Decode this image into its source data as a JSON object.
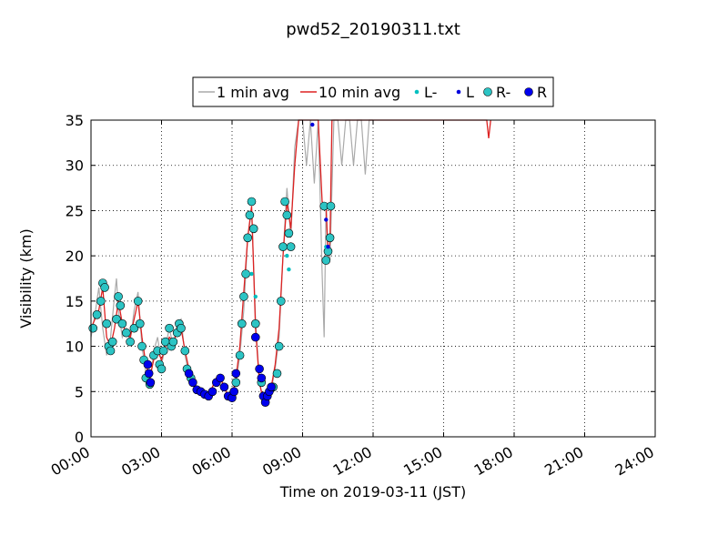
{
  "chart_data": {
    "type": "line",
    "title": "pwd52_20190311.txt",
    "xlabel": "Time on 2019-03-11 (JST)",
    "ylabel": "Visibility (km)",
    "xlim": [
      "00:00",
      "24:00"
    ],
    "ylim": [
      0,
      35
    ],
    "x_ticks": [
      "00:00",
      "03:00",
      "06:00",
      "09:00",
      "12:00",
      "15:00",
      "18:00",
      "21:00",
      "24:00"
    ],
    "y_ticks": [
      0,
      5,
      10,
      15,
      20,
      25,
      30,
      35
    ],
    "grid": true,
    "legend_position": "top-center",
    "legend": [
      {
        "label": "1 min avg",
        "marker": "line",
        "color": "#aaaaaa"
      },
      {
        "label": "10 min avg",
        "marker": "line",
        "color": "#dd2222"
      },
      {
        "label": "L-",
        "marker": "small-dot",
        "color": "#00bfbf"
      },
      {
        "label": "L",
        "marker": "small-dot",
        "color": "#0000dd"
      },
      {
        "label": "R-",
        "marker": "circle",
        "color": "#2cc4c4"
      },
      {
        "label": "R",
        "marker": "circle",
        "color": "#0000ee"
      }
    ],
    "series": [
      {
        "name": "1 min avg",
        "color": "#aaaaaa",
        "points": [
          [
            "00:00",
            11.0
          ],
          [
            "00:10",
            13.5
          ],
          [
            "00:20",
            16.5
          ],
          [
            "00:30",
            12.0
          ],
          [
            "00:40",
            9.0
          ],
          [
            "00:50",
            11.0
          ],
          [
            "01:00",
            15.5
          ],
          [
            "01:05",
            17.5
          ],
          [
            "01:10",
            14.0
          ],
          [
            "01:20",
            11.0
          ],
          [
            "01:30",
            12.0
          ],
          [
            "01:40",
            10.5
          ],
          [
            "01:50",
            14.0
          ],
          [
            "02:00",
            16.0
          ],
          [
            "02:10",
            10.0
          ],
          [
            "02:20",
            7.0
          ],
          [
            "02:30",
            5.5
          ],
          [
            "02:40",
            9.5
          ],
          [
            "02:50",
            11.0
          ],
          [
            "03:00",
            8.0
          ],
          [
            "03:10",
            10.0
          ],
          [
            "03:20",
            12.0
          ],
          [
            "03:30",
            10.0
          ],
          [
            "03:40",
            12.5
          ],
          [
            "03:50",
            13.0
          ],
          [
            "04:00",
            9.0
          ],
          [
            "04:10",
            7.0
          ],
          [
            "04:20",
            6.0
          ],
          [
            "04:30",
            5.0
          ],
          [
            "04:40",
            4.8
          ],
          [
            "04:50",
            5.0
          ],
          [
            "05:00",
            4.6
          ],
          [
            "05:10",
            5.5
          ],
          [
            "05:20",
            6.5
          ],
          [
            "05:30",
            6.8
          ],
          [
            "05:40",
            5.5
          ],
          [
            "05:50",
            4.5
          ],
          [
            "06:00",
            4.4
          ],
          [
            "06:10",
            6.0
          ],
          [
            "06:20",
            9.0
          ],
          [
            "06:30",
            14.0
          ],
          [
            "06:40",
            22.0
          ],
          [
            "06:50",
            25.0
          ],
          [
            "07:00",
            13.0
          ],
          [
            "07:10",
            6.0
          ],
          [
            "07:20",
            3.8
          ],
          [
            "07:30",
            4.5
          ],
          [
            "07:40",
            5.2
          ],
          [
            "07:50",
            7.5
          ],
          [
            "08:00",
            11.0
          ],
          [
            "08:10",
            20.0
          ],
          [
            "08:20",
            27.5
          ],
          [
            "08:30",
            22.0
          ],
          [
            "08:40",
            32.0
          ],
          [
            "08:50",
            35.0
          ],
          [
            "09:00",
            35.0
          ],
          [
            "09:10",
            30.0
          ],
          [
            "09:20",
            35.0
          ],
          [
            "09:30",
            28.0
          ],
          [
            "09:40",
            35.0
          ],
          [
            "09:50",
            18.0
          ],
          [
            "09:55",
            11.0
          ],
          [
            "10:00",
            25.5
          ],
          [
            "10:05",
            21.0
          ],
          [
            "10:10",
            19.5
          ],
          [
            "10:20",
            35.0
          ],
          [
            "10:30",
            35.0
          ],
          [
            "10:40",
            30.0
          ],
          [
            "10:50",
            35.0
          ],
          [
            "11:00",
            35.0
          ],
          [
            "11:10",
            30.0
          ],
          [
            "11:20",
            35.0
          ],
          [
            "11:30",
            35.0
          ],
          [
            "11:40",
            29.0
          ],
          [
            "11:50",
            35.0
          ],
          [
            "12:00",
            35.0
          ]
        ]
      },
      {
        "name": "10 min avg",
        "color": "#dd2222",
        "points": [
          [
            "00:00",
            12.0
          ],
          [
            "00:20",
            14.0
          ],
          [
            "00:30",
            16.5
          ],
          [
            "00:40",
            11.0
          ],
          [
            "00:50",
            10.0
          ],
          [
            "01:00",
            12.0
          ],
          [
            "01:10",
            15.0
          ],
          [
            "01:20",
            12.5
          ],
          [
            "01:30",
            11.5
          ],
          [
            "01:40",
            11.0
          ],
          [
            "01:50",
            13.0
          ],
          [
            "02:00",
            15.0
          ],
          [
            "02:10",
            11.0
          ],
          [
            "02:20",
            8.0
          ],
          [
            "02:30",
            6.5
          ],
          [
            "02:40",
            8.5
          ],
          [
            "02:50",
            9.5
          ],
          [
            "03:00",
            8.5
          ],
          [
            "03:10",
            10.0
          ],
          [
            "03:20",
            11.0
          ],
          [
            "03:30",
            10.5
          ],
          [
            "03:40",
            11.5
          ],
          [
            "03:50",
            12.0
          ],
          [
            "04:00",
            9.5
          ],
          [
            "04:10",
            7.5
          ],
          [
            "04:20",
            6.0
          ],
          [
            "04:30",
            5.2
          ],
          [
            "04:40",
            5.0
          ],
          [
            "04:50",
            5.0
          ],
          [
            "05:00",
            4.8
          ],
          [
            "05:10",
            5.5
          ],
          [
            "05:20",
            6.5
          ],
          [
            "05:30",
            6.5
          ],
          [
            "05:40",
            5.5
          ],
          [
            "05:50",
            4.5
          ],
          [
            "06:00",
            4.5
          ],
          [
            "06:10",
            6.5
          ],
          [
            "06:20",
            10.0
          ],
          [
            "06:30",
            16.0
          ],
          [
            "06:40",
            22.0
          ],
          [
            "06:50",
            25.5
          ],
          [
            "07:00",
            12.0
          ],
          [
            "07:10",
            6.0
          ],
          [
            "07:20",
            4.0
          ],
          [
            "07:30",
            4.5
          ],
          [
            "07:40",
            5.5
          ],
          [
            "07:50",
            8.0
          ],
          [
            "08:00",
            12.0
          ],
          [
            "08:10",
            20.0
          ],
          [
            "08:20",
            26.0
          ],
          [
            "08:30",
            23.0
          ],
          [
            "08:40",
            30.0
          ],
          [
            "08:50",
            35.0
          ],
          [
            "09:20",
            35.0
          ],
          [
            "09:40",
            35.0
          ],
          [
            "09:50",
            26.0
          ],
          [
            "10:00",
            25.5
          ],
          [
            "10:05",
            20.0
          ],
          [
            "10:10",
            21.5
          ],
          [
            "10:15",
            35.0
          ],
          [
            "16:50",
            35.0
          ],
          [
            "16:55",
            33.0
          ],
          [
            "17:00",
            35.0
          ]
        ]
      },
      {
        "name": "R-",
        "color": "#2cc4c4",
        "points": [
          [
            "00:05",
            12.0
          ],
          [
            "00:15",
            13.5
          ],
          [
            "00:25",
            15.0
          ],
          [
            "00:30",
            17.0
          ],
          [
            "00:35",
            16.5
          ],
          [
            "00:40",
            12.5
          ],
          [
            "00:45",
            10.0
          ],
          [
            "00:50",
            9.5
          ],
          [
            "00:55",
            10.5
          ],
          [
            "01:05",
            13.0
          ],
          [
            "01:10",
            15.5
          ],
          [
            "01:15",
            14.5
          ],
          [
            "01:20",
            12.5
          ],
          [
            "01:30",
            11.5
          ],
          [
            "01:40",
            10.5
          ],
          [
            "01:50",
            12.0
          ],
          [
            "02:00",
            15.0
          ],
          [
            "02:05",
            12.5
          ],
          [
            "02:10",
            10.0
          ],
          [
            "02:15",
            8.5
          ],
          [
            "02:20",
            6.5
          ],
          [
            "02:30",
            5.8
          ],
          [
            "02:40",
            9.0
          ],
          [
            "02:50",
            9.5
          ],
          [
            "02:55",
            8.0
          ],
          [
            "03:00",
            7.5
          ],
          [
            "03:05",
            9.5
          ],
          [
            "03:10",
            10.5
          ],
          [
            "03:20",
            12.0
          ],
          [
            "03:25",
            10.0
          ],
          [
            "03:30",
            10.5
          ],
          [
            "03:40",
            11.5
          ],
          [
            "03:45",
            12.5
          ],
          [
            "03:50",
            12.0
          ],
          [
            "04:00",
            9.5
          ],
          [
            "04:05",
            7.5
          ],
          [
            "04:15",
            6.5
          ],
          [
            "06:10",
            6.0
          ],
          [
            "06:20",
            9.0
          ],
          [
            "06:25",
            12.5
          ],
          [
            "06:30",
            15.5
          ],
          [
            "06:35",
            18.0
          ],
          [
            "06:40",
            22.0
          ],
          [
            "06:45",
            24.5
          ],
          [
            "06:50",
            26.0
          ],
          [
            "06:55",
            23.0
          ],
          [
            "07:00",
            12.5
          ],
          [
            "07:15",
            6.0
          ],
          [
            "07:45",
            5.5
          ],
          [
            "07:55",
            7.0
          ],
          [
            "08:00",
            10.0
          ],
          [
            "08:05",
            15.0
          ],
          [
            "08:10",
            21.0
          ],
          [
            "08:15",
            26.0
          ],
          [
            "08:20",
            24.5
          ],
          [
            "08:25",
            22.5
          ],
          [
            "08:30",
            21.0
          ],
          [
            "09:55",
            25.5
          ],
          [
            "10:00",
            19.5
          ],
          [
            "10:05",
            20.5
          ],
          [
            "10:10",
            22.0
          ],
          [
            "10:12",
            25.5
          ]
        ]
      },
      {
        "name": "R",
        "color": "#0000ee",
        "points": [
          [
            "02:25",
            8.0
          ],
          [
            "02:28",
            7.0
          ],
          [
            "02:32",
            6.0
          ],
          [
            "04:10",
            7.0
          ],
          [
            "04:20",
            6.0
          ],
          [
            "04:30",
            5.2
          ],
          [
            "04:40",
            5.0
          ],
          [
            "04:50",
            4.7
          ],
          [
            "05:00",
            4.5
          ],
          [
            "05:10",
            5.0
          ],
          [
            "05:20",
            6.0
          ],
          [
            "05:30",
            6.5
          ],
          [
            "05:40",
            5.5
          ],
          [
            "05:50",
            4.5
          ],
          [
            "06:00",
            4.3
          ],
          [
            "06:05",
            5.0
          ],
          [
            "06:10",
            7.0
          ],
          [
            "07:00",
            11.0
          ],
          [
            "07:10",
            7.5
          ],
          [
            "07:15",
            6.5
          ],
          [
            "07:20",
            4.5
          ],
          [
            "07:25",
            3.8
          ],
          [
            "07:30",
            4.5
          ],
          [
            "07:35",
            5.0
          ],
          [
            "07:40",
            5.5
          ]
        ]
      },
      {
        "name": "L-",
        "color": "#00bfbf",
        "points": [
          [
            "06:50",
            18.0
          ],
          [
            "07:00",
            15.5
          ],
          [
            "08:20",
            20.0
          ],
          [
            "08:25",
            18.5
          ],
          [
            "10:00",
            21.0
          ]
        ]
      },
      {
        "name": "L",
        "color": "#0000dd",
        "points": [
          [
            "09:25",
            34.5
          ],
          [
            "10:00",
            24.0
          ],
          [
            "10:05",
            21.0
          ]
        ]
      }
    ]
  }
}
